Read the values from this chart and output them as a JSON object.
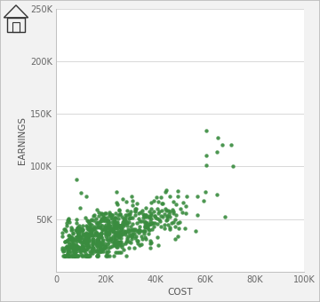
{
  "xlabel": "COST",
  "ylabel": "EARNINGS",
  "xlim": [
    0,
    100000
  ],
  "ylim": [
    0,
    250000
  ],
  "xticks": [
    0,
    20000,
    40000,
    60000,
    80000,
    100000
  ],
  "yticks": [
    50000,
    100000,
    150000,
    200000,
    250000
  ],
  "xtick_labels": [
    "0",
    "20K",
    "40K",
    "60K",
    "80K",
    "100K"
  ],
  "ytick_labels": [
    "50K",
    "100K",
    "150K",
    "200K",
    "250K"
  ],
  "dot_color": "#3a8c3f",
  "dot_size": 10,
  "dot_alpha": 0.9,
  "background_color": "#f2f2f2",
  "plot_bg_color": "#ffffff",
  "grid_color": "#d8d8d8",
  "border_color": "#c0c0c0",
  "label_fontsize": 7.5,
  "tick_fontsize": 7,
  "seed": 42,
  "n_points": 680
}
